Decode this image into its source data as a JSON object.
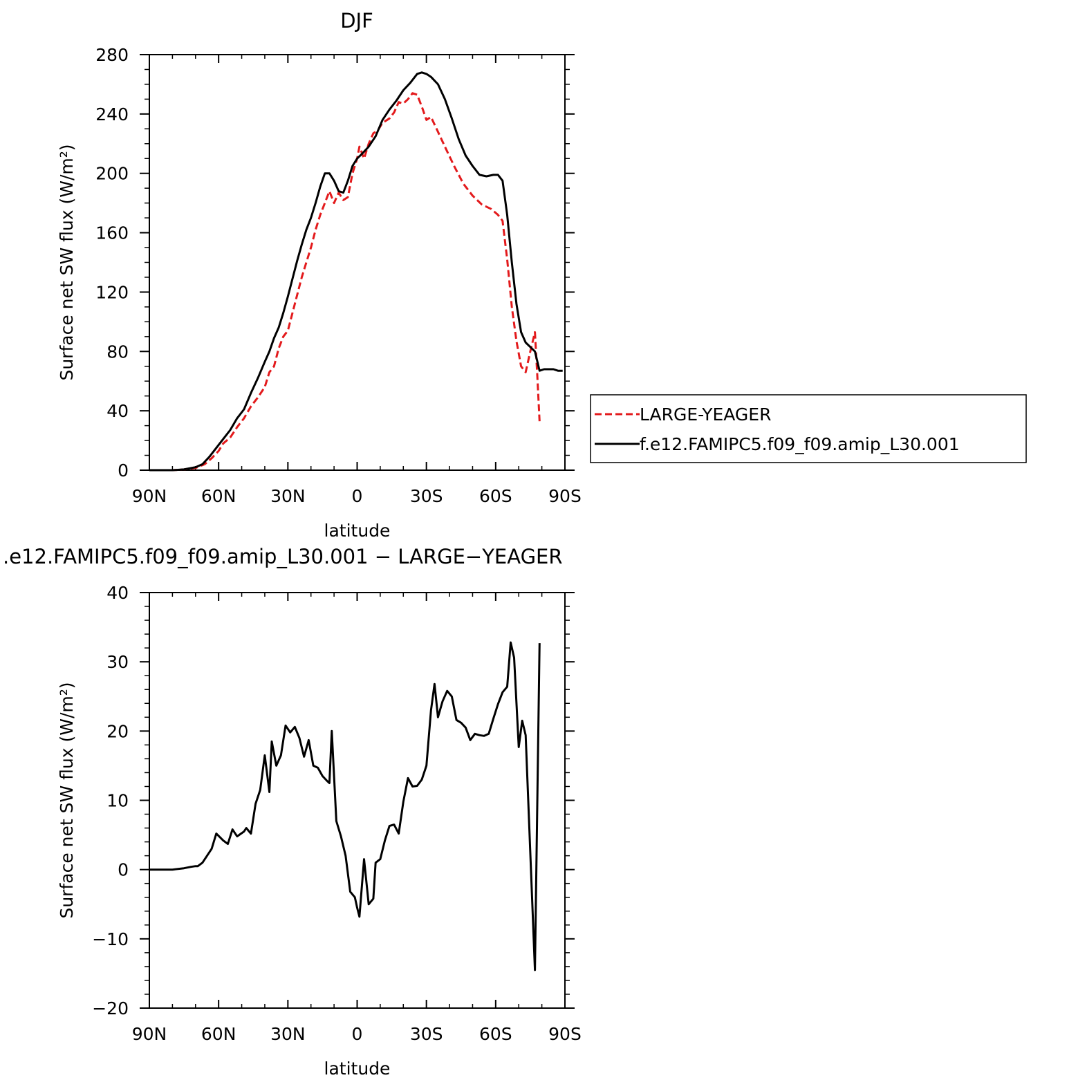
{
  "chart_data": [
    {
      "type": "line",
      "title": "DJF",
      "xlabel": "latitude",
      "ylabel": "Surface net SW flux (W/m²)",
      "xlim": [
        90,
        -90
      ],
      "ylim": [
        0,
        280
      ],
      "xticks": [
        90,
        60,
        30,
        0,
        -30,
        -60,
        -90
      ],
      "xtick_labels": [
        "90N",
        "60N",
        "30N",
        "0",
        "30S",
        "60S",
        "90S"
      ],
      "yticks": [
        0,
        40,
        80,
        120,
        160,
        200,
        240,
        280
      ],
      "ytick_labels": [
        "0",
        "40",
        "80",
        "120",
        "160",
        "200",
        "240",
        "280"
      ],
      "legend_position": "right",
      "series": [
        {
          "name": "LARGE-YEAGER",
          "color": "#e31a1c",
          "style": "dashed",
          "points": [
            [
              90,
              0
            ],
            [
              80,
              0
            ],
            [
              75,
              0.5
            ],
            [
              70,
              1.5
            ],
            [
              66,
              4
            ],
            [
              63,
              8
            ],
            [
              60,
              13
            ],
            [
              58,
              18
            ],
            [
              55,
              22
            ],
            [
              52,
              29
            ],
            [
              49,
              35
            ],
            [
              46,
              43
            ],
            [
              43,
              49
            ],
            [
              40,
              56
            ],
            [
              38,
              66
            ],
            [
              36,
              70
            ],
            [
              34,
              82
            ],
            [
              32,
              90
            ],
            [
              30,
              94
            ],
            [
              28,
              106
            ],
            [
              26,
              118
            ],
            [
              24,
              130
            ],
            [
              22,
              140
            ],
            [
              20,
              150
            ],
            [
              18,
              162
            ],
            [
              16,
              172
            ],
            [
              14,
              180
            ],
            [
              12,
              188
            ],
            [
              10,
              180
            ],
            [
              8,
              187
            ],
            [
              6,
              182
            ],
            [
              4,
              184
            ],
            [
              2,
              200
            ],
            [
              0,
              210
            ],
            [
              -1,
              218
            ],
            [
              -3,
              210
            ],
            [
              -5,
              220
            ],
            [
              -7,
              227
            ],
            [
              -9,
              229
            ],
            [
              -11,
              234
            ],
            [
              -14,
              237
            ],
            [
              -16,
              241
            ],
            [
              -18,
              248
            ],
            [
              -20,
              247
            ],
            [
              -22,
              250
            ],
            [
              -24,
              254
            ],
            [
              -26,
              253
            ],
            [
              -28,
              245
            ],
            [
              -30,
              236
            ],
            [
              -32,
              238
            ],
            [
              -35,
              228
            ],
            [
              -38,
              218
            ],
            [
              -42,
              205
            ],
            [
              -46,
              193
            ],
            [
              -50,
              185
            ],
            [
              -54,
              179
            ],
            [
              -58,
              176
            ],
            [
              -61,
              172
            ],
            [
              -63,
              168
            ],
            [
              -65,
              142
            ],
            [
              -67,
              110
            ],
            [
              -69,
              87
            ],
            [
              -71,
              70
            ],
            [
              -73,
              66
            ],
            [
              -75,
              80
            ],
            [
              -77,
              93
            ],
            [
              -78,
              65
            ],
            [
              -79,
              33
            ]
          ]
        },
        {
          "name": "f.e12.FAMIPC5.f09_f09.amip_L30.001",
          "color": "#000000",
          "style": "solid",
          "points": [
            [
              90,
              0
            ],
            [
              80,
              0
            ],
            [
              75,
              0.5
            ],
            [
              70,
              2
            ],
            [
              67,
              4
            ],
            [
              64,
              9
            ],
            [
              61,
              15
            ],
            [
              58,
              21
            ],
            [
              55,
              27
            ],
            [
              52,
              35
            ],
            [
              49,
              41
            ],
            [
              46,
              52
            ],
            [
              43,
              62
            ],
            [
              40,
              73
            ],
            [
              38,
              80
            ],
            [
              36,
              89
            ],
            [
              34,
              96
            ],
            [
              32,
              106
            ],
            [
              30,
              117
            ],
            [
              28,
              129
            ],
            [
              26,
              141
            ],
            [
              24,
              152
            ],
            [
              22,
              162
            ],
            [
              20,
              170
            ],
            [
              18,
              180
            ],
            [
              16,
              191
            ],
            [
              14,
              200
            ],
            [
              12,
              200
            ],
            [
              10,
              195
            ],
            [
              8,
              188
            ],
            [
              6,
              187
            ],
            [
              4,
              195
            ],
            [
              2,
              205
            ],
            [
              0,
              210
            ],
            [
              -2,
              213
            ],
            [
              -5,
              218
            ],
            [
              -8,
              225
            ],
            [
              -11,
              236
            ],
            [
              -14,
              243
            ],
            [
              -17,
              249
            ],
            [
              -20,
              256
            ],
            [
              -23,
              261
            ],
            [
              -26,
              267
            ],
            [
              -28,
              268
            ],
            [
              -30,
              267
            ],
            [
              -32,
              265
            ],
            [
              -35,
              260
            ],
            [
              -38,
              250
            ],
            [
              -41,
              237
            ],
            [
              -44,
              223
            ],
            [
              -47,
              212
            ],
            [
              -50,
              205
            ],
            [
              -53,
              199
            ],
            [
              -56,
              198
            ],
            [
              -59,
              199
            ],
            [
              -61,
              199
            ],
            [
              -63,
              195
            ],
            [
              -65,
              172
            ],
            [
              -67,
              140
            ],
            [
              -69,
              112
            ],
            [
              -71,
              93
            ],
            [
              -73,
              86
            ],
            [
              -75,
              83
            ],
            [
              -77,
              80
            ],
            [
              -79,
              67
            ],
            [
              -81,
              68
            ],
            [
              -83,
              68
            ],
            [
              -85,
              68
            ],
            [
              -87,
              67
            ],
            [
              -89,
              67
            ]
          ]
        }
      ]
    },
    {
      "type": "line",
      "title": ".e12.FAMIPC5.f09_f09.amip_L30.001 − LARGE−YEAGER",
      "xlabel": "latitude",
      "ylabel": "Surface net SW flux (W/m²)",
      "xlim": [
        90,
        -90
      ],
      "ylim": [
        -20,
        40
      ],
      "xticks": [
        90,
        60,
        30,
        0,
        -30,
        -60,
        -90
      ],
      "xtick_labels": [
        "90N",
        "60N",
        "30N",
        "0",
        "30S",
        "60S",
        "90S"
      ],
      "yticks": [
        -20,
        -10,
        0,
        10,
        20,
        30,
        40
      ],
      "ytick_labels": [
        "−20",
        "−10",
        "0",
        "10",
        "20",
        "30",
        "40"
      ],
      "series": [
        {
          "color": "#000000",
          "style": "solid",
          "points": [
            [
              90,
              0
            ],
            [
              80,
              0
            ],
            [
              75,
              0.2
            ],
            [
              72,
              0.4
            ],
            [
              70,
              0.5
            ],
            [
              69,
              0.5
            ],
            [
              67,
              1
            ],
            [
              65,
              2
            ],
            [
              63,
              3
            ],
            [
              61,
              5.2
            ],
            [
              58,
              4.2
            ],
            [
              56,
              3.7
            ],
            [
              54,
              5.8
            ],
            [
              52,
              4.8
            ],
            [
              49,
              5.5
            ],
            [
              48,
              6
            ],
            [
              46,
              5.2
            ],
            [
              44,
              9.5
            ],
            [
              42,
              11.5
            ],
            [
              40,
              16.5
            ],
            [
              38,
              11.2
            ],
            [
              37,
              18.5
            ],
            [
              35,
              15
            ],
            [
              33,
              16.5
            ],
            [
              31,
              20.8
            ],
            [
              29,
              19.8
            ],
            [
              27,
              20.6
            ],
            [
              25,
              19
            ],
            [
              23,
              16.3
            ],
            [
              21,
              18.7
            ],
            [
              19,
              15
            ],
            [
              17,
              14.7
            ],
            [
              15,
              13.5
            ],
            [
              13,
              12.8
            ],
            [
              12,
              12.5
            ],
            [
              11,
              20
            ],
            [
              9,
              7
            ],
            [
              7,
              4.8
            ],
            [
              5,
              2
            ],
            [
              3,
              -3.2
            ],
            [
              1,
              -4
            ],
            [
              0,
              -5.5
            ],
            [
              -1,
              -6.8
            ],
            [
              -3,
              1.5
            ],
            [
              -5,
              -5
            ],
            [
              -7,
              -4.2
            ],
            [
              -8,
              1
            ],
            [
              -10,
              1.5
            ],
            [
              -12,
              4.2
            ],
            [
              -14,
              6.3
            ],
            [
              -16,
              6.5
            ],
            [
              -18,
              5.2
            ],
            [
              -20,
              9.8
            ],
            [
              -22,
              13.2
            ],
            [
              -24,
              12
            ],
            [
              -26,
              12.1
            ],
            [
              -28,
              13
            ],
            [
              -30,
              15
            ],
            [
              -32,
              23
            ],
            [
              -33.5,
              26.8
            ],
            [
              -35,
              22
            ],
            [
              -37,
              24.3
            ],
            [
              -39,
              25.8
            ],
            [
              -41,
              25
            ],
            [
              -43,
              21.6
            ],
            [
              -45,
              21.2
            ],
            [
              -47,
              20.5
            ],
            [
              -49,
              18.7
            ],
            [
              -51,
              19.6
            ],
            [
              -53,
              19.4
            ],
            [
              -55,
              19.3
            ],
            [
              -57,
              19.6
            ],
            [
              -59,
              21.8
            ],
            [
              -61,
              23.9
            ],
            [
              -63,
              25.6
            ],
            [
              -65,
              26.4
            ],
            [
              -66.5,
              32.8
            ],
            [
              -68,
              30.6
            ],
            [
              -70,
              17.7
            ],
            [
              -71.5,
              21.5
            ],
            [
              -73,
              19.4
            ],
            [
              -77,
              -14.5
            ],
            [
              -79,
              32.7
            ]
          ]
        }
      ]
    }
  ]
}
